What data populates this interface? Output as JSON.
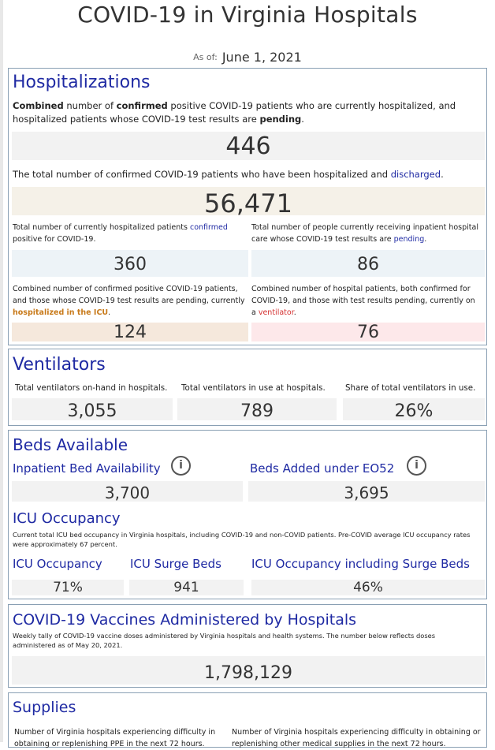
{
  "page": {
    "title": "COVID-19 in Virginia Hospitals",
    "as_of_label": "As of:",
    "as_of_value": "June 1, 2021"
  },
  "hospitalizations": {
    "heading": "Hospitalizations",
    "combined_desc": {
      "w1": "Combined",
      "t1": " number of ",
      "w2": "confirmed",
      "t2": " positive COVID-19 patients who are currently hospitalized, and hospitalized patients whose COVID-19 test results are ",
      "w3": "pending",
      "t3": "."
    },
    "combined_value": "446",
    "discharged_desc": {
      "t1": "The total number of confirmed COVID-19 patients who have been hospitalized and ",
      "w1": "discharged",
      "t2": "."
    },
    "discharged_value": "56,471",
    "confirmed_desc": {
      "t1": "Total number of currently hospitalized patients ",
      "w1": "confirmed",
      "t2": " positive for COVID-19."
    },
    "confirmed_value": "360",
    "pending_desc": {
      "t1": "Total number of people currently receiving inpatient hospital care whose COVID-19 test results are ",
      "w1": "pending",
      "t2": "."
    },
    "pending_value": "86",
    "icu_desc": {
      "t1": "Combined number of confirmed positive COVID-19 patients, and those whose COVID-19 test results are pending, currently ",
      "w1": "hospitalized in the ICU",
      "t2": "."
    },
    "icu_value": "124",
    "vent_desc": {
      "t1": "Combined number of hospital patients, both confirmed for COVID-19, and those with test results pending, currently on a ",
      "w1": "ventilator",
      "t2": "."
    },
    "vent_value": "76"
  },
  "ventilators": {
    "heading": "Ventilators",
    "on_hand_label": "Total ventilators on-hand in hospitals.",
    "on_hand_value": "3,055",
    "in_use_label": "Total ventilators in use at hospitals.",
    "in_use_value": "789",
    "share_label": "Share of total ventilators in use.",
    "share_value": "26%"
  },
  "beds": {
    "heading": "Beds Available",
    "inpatient_label": "Inpatient Bed Availability",
    "inpatient_value": "3,700",
    "added_label": "Beds Added under EO52",
    "added_value": "3,695",
    "info_glyph": "i",
    "icu_heading": "ICU Occupancy",
    "icu_desc": "Current total ICU bed occupancy in Virginia hospitals, including COVID-19 and non-COVID patients. Pre-COVID average ICU occupancy rates were approximately 67 percent.",
    "icu_occ_label": "ICU Occupancy",
    "icu_occ_value": "71%",
    "surge_label": "ICU Surge Beds",
    "surge_value": "941",
    "incl_label": "ICU Occupancy including Surge Beds",
    "incl_value": "46%"
  },
  "vaccines": {
    "heading": "COVID-19 Vaccines Administered by Hospitals",
    "desc": "Weekly tally of COVID-19 vaccine doses administered by Virginia hospitals and health systems. The number below reflects doses administered as of May 20, 2021.",
    "value": "1,798,129"
  },
  "supplies": {
    "heading": "Supplies",
    "ppe_desc": "Number of Virginia hospitals experiencing difficulty in obtaining or replenishing PPE in the next 72 hours.",
    "other_desc": "Number of Virginia hospitals experiencing difficulty in obtaining or replenishing other medical supplies in the next 72 hours."
  },
  "colors": {
    "heading_blue": "#1f2aa3",
    "orange": "#c87a1a",
    "red": "#d43030",
    "box_gray": "#f2f2f2",
    "box_beige": "#f5f1e8",
    "box_blue": "#edf3f7",
    "box_peach": "#f5e8dc",
    "box_pink": "#fde8ea",
    "border": "#8aa0b4"
  }
}
